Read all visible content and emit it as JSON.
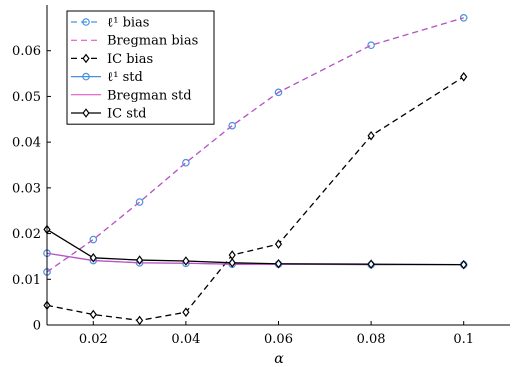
{
  "chart_data": {
    "type": "line",
    "title": "",
    "xlabel": "α",
    "ylabel": "",
    "xlim": [
      0.01,
      0.11
    ],
    "ylim": [
      0,
      0.07
    ],
    "xticks": [
      0.02,
      0.04,
      0.06,
      0.08,
      0.1
    ],
    "xtick_labels": [
      "0.02",
      "0.04",
      "0.06",
      "0.08",
      "0.1"
    ],
    "yticks": [
      0,
      0.01,
      0.02,
      0.03,
      0.04,
      0.05,
      0.06
    ],
    "ytick_labels": [
      "0",
      "0.01",
      "0.02",
      "0.03",
      "0.04",
      "0.05",
      "0.06"
    ],
    "grid": false,
    "legend_position": "top-left",
    "x": [
      0.01,
      0.02,
      0.03,
      0.04,
      0.05,
      0.06,
      0.08,
      0.1
    ],
    "series": [
      {
        "name": "ℓ¹ bias",
        "color": "#4a90e2",
        "dash": "dashed",
        "marker": "circle",
        "values": [
          0.0116,
          0.0187,
          0.0269,
          0.0355,
          0.0436,
          0.0509,
          0.0612,
          0.0672
        ]
      },
      {
        "name": "Bregman bias",
        "color": "#e040c0",
        "dash": "dashed",
        "marker": "none",
        "values": [
          0.0116,
          0.0187,
          0.0269,
          0.0355,
          0.0436,
          0.0509,
          0.0612,
          0.0672
        ]
      },
      {
        "name": "IC bias",
        "color": "#000000",
        "dash": "dashed",
        "marker": "diamond",
        "values": [
          0.0043,
          0.0023,
          0.001,
          0.0028,
          0.0153,
          0.0177,
          0.0414,
          0.0543
        ]
      },
      {
        "name": "ℓ¹ std",
        "color": "#4a90e2",
        "dash": "solid",
        "marker": "circle",
        "values": [
          0.0157,
          0.0141,
          0.0136,
          0.0135,
          0.0133,
          0.0133,
          0.0132,
          0.0132
        ]
      },
      {
        "name": "Bregman std",
        "color": "#e040c0",
        "dash": "solid",
        "marker": "none",
        "values": [
          0.0157,
          0.0141,
          0.0136,
          0.0135,
          0.0133,
          0.0133,
          0.0132,
          0.0132
        ]
      },
      {
        "name": "IC std",
        "color": "#000000",
        "dash": "solid",
        "marker": "diamond",
        "values": [
          0.0209,
          0.0147,
          0.0142,
          0.014,
          0.0136,
          0.0134,
          0.0133,
          0.0132
        ]
      }
    ]
  }
}
